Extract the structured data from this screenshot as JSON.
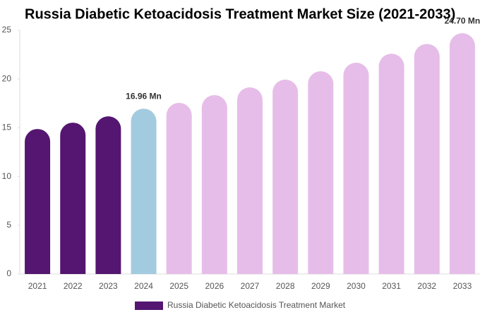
{
  "chart_data": {
    "type": "bar",
    "title": "Russia Diabetic Ketoacidosis Treatment Market Size (2021-2033)",
    "categories": [
      "2021",
      "2022",
      "2023",
      "2024",
      "2025",
      "2026",
      "2027",
      "2028",
      "2029",
      "2030",
      "2031",
      "2032",
      "2033"
    ],
    "series": [
      {
        "name": "Russia Diabetic Ketoacidosis Treatment Market",
        "color": "#541670",
        "colors": [
          "#541670",
          "#541670",
          "#541670",
          "#a3cbe0",
          "#e6bde8",
          "#e6bde8",
          "#e6bde8",
          "#e6bde8",
          "#e6bde8",
          "#e6bde8",
          "#e6bde8",
          "#e6bde8",
          "#e6bde8"
        ],
        "values": [
          14.88,
          15.53,
          16.18,
          16.96,
          17.56,
          18.35,
          19.15,
          19.94,
          20.8,
          21.68,
          22.6,
          23.6,
          24.7
        ],
        "value_labels": [
          null,
          null,
          null,
          "16.96 Mn",
          null,
          null,
          null,
          null,
          null,
          null,
          null,
          null,
          "24.70 Mn"
        ]
      }
    ],
    "ylim": [
      0,
      25
    ],
    "yticks": [
      0,
      5,
      10,
      15,
      20,
      25
    ]
  }
}
